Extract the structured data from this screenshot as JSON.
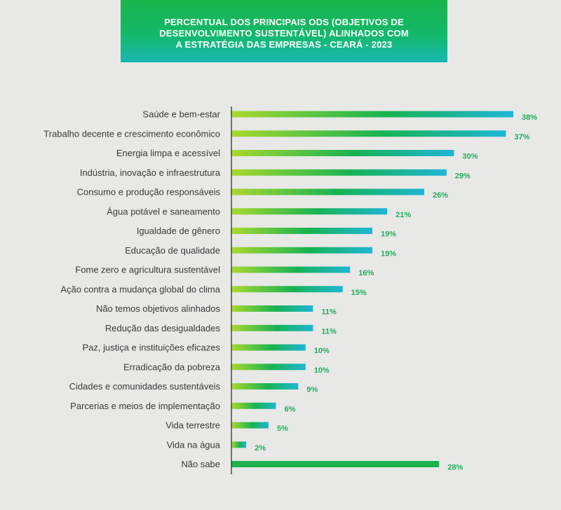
{
  "title": "PERCENTUAL DOS PRINCIPAIS ODS (OBJETIVOS DE\nDESENVOLVIMENTO SUSTENTÁVEL) ALINHADOS COM\nA ESTRATÉGIA DAS EMPRESAS - CEARÁ - 2023",
  "colors": {
    "bar_start": "#a9d92e",
    "bar_mid": "#17b352",
    "bar_end": "#1fb6d6",
    "bar_solid": "#1db14f",
    "value_text": "#1fae5e",
    "title_bg": "#18b45a"
  },
  "chart_data": {
    "type": "bar",
    "orientation": "horizontal",
    "title": "PERCENTUAL DOS PRINCIPAIS ODS (OBJETIVOS DE DESENVOLVIMENTO SUSTENTÁVEL) ALINHADOS COM A ESTRATÉGIA DAS EMPRESAS - CEARÁ - 2023",
    "unit": "%",
    "xlim": [
      0,
      40
    ],
    "grid": false,
    "categories": [
      "Saúde e bem-estar",
      "Trabalho decente e crescimento econômico",
      "Energia limpa e acessível",
      "Indústria, inovação e infraestrutura",
      "Consumo e produção responsáveis",
      "Água potável e saneamento",
      "Igualdade de gênero",
      "Educação de qualidade",
      "Fome zero e agricultura sustentável",
      "Ação contra a mudança global do clima",
      "Não temos objetivos alinhados",
      "Redução das desigualdades",
      "Paz, justiça e instituições eficazes",
      "Erradicação da pobreza",
      "Cidades e comunidades sustentáveis",
      "Parcerias e meios de implementação",
      "Vida terrestre",
      "Vida na água",
      "Não sabe"
    ],
    "values": [
      38,
      37,
      30,
      29,
      26,
      21,
      19,
      19,
      16,
      15,
      11,
      11,
      10,
      10,
      9,
      6,
      5,
      2,
      28
    ],
    "value_labels": [
      "38%",
      "37%",
      "30%",
      "29%",
      "26%",
      "21%",
      "19%",
      "19%",
      "16%",
      "15%",
      "11%",
      "11%",
      "10%",
      "10%",
      "9%",
      "6%",
      "5%",
      "2%",
      "28%"
    ],
    "solid_fill_categories": [
      "Não sabe"
    ]
  }
}
